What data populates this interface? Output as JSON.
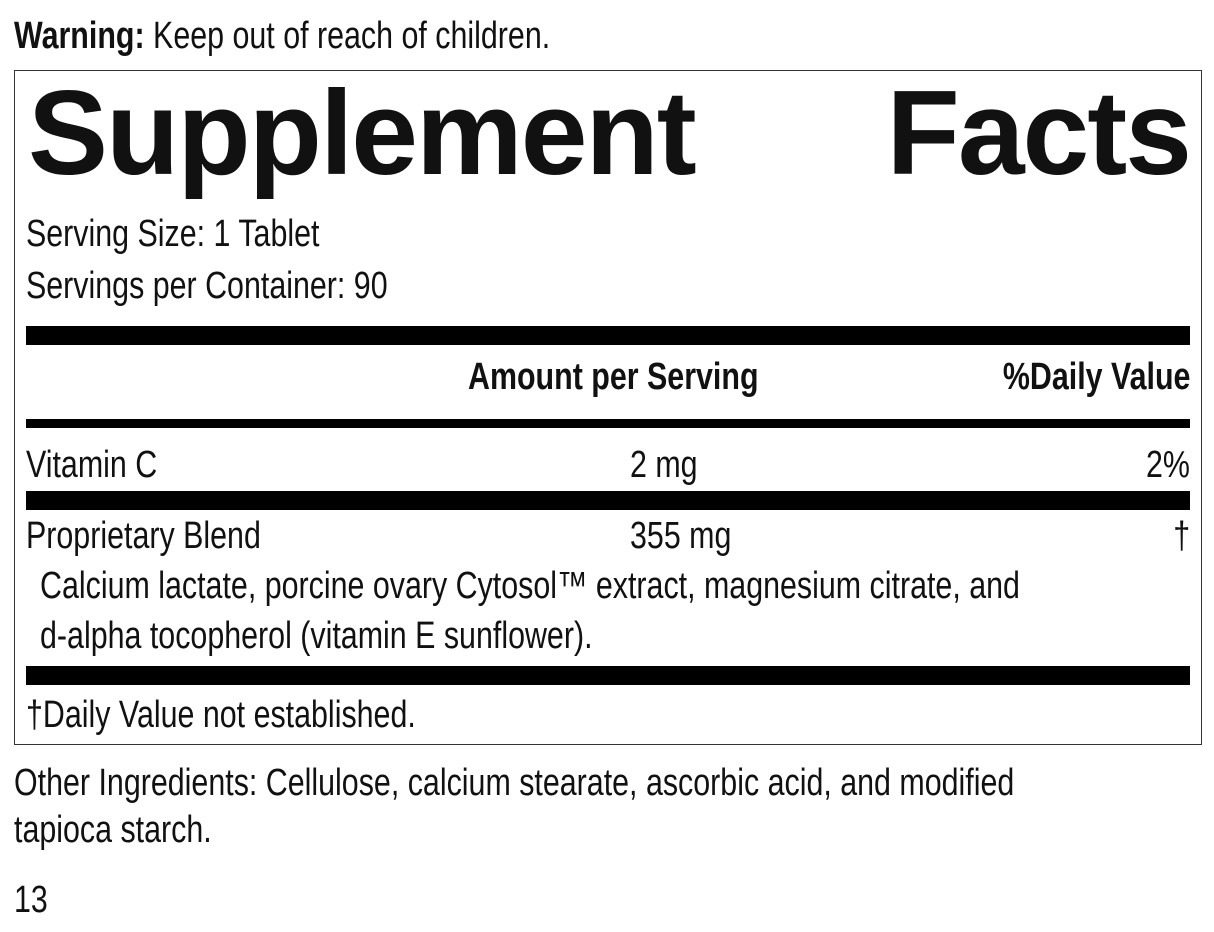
{
  "warning": {
    "label": "Warning:",
    "text": "Keep out of reach of children."
  },
  "facts": {
    "title": "Supplement Facts",
    "serving_size": "Serving Size: 1 Tablet",
    "servings_per_container": "Servings per Container: 90",
    "columns": [
      "Amount per Serving",
      "%Daily Value"
    ],
    "rows": [
      {
        "name": "Vitamin C",
        "amount": "2 mg",
        "daily_value": "2%"
      },
      {
        "name": "Proprietary Blend",
        "amount": "355 mg",
        "daily_value": "†",
        "description": [
          "Calcium lactate, porcine ovary Cytosol™ extract, magnesium citrate, and",
          "d-alpha tocopherol (vitamin E sunflower)."
        ]
      }
    ],
    "footnote": "†Daily Value not established."
  },
  "other_ingredients": [
    "Other Ingredients: Cellulose, calcium stearate, ascorbic acid, and modified",
    "tapioca starch."
  ],
  "page_number": "13"
}
